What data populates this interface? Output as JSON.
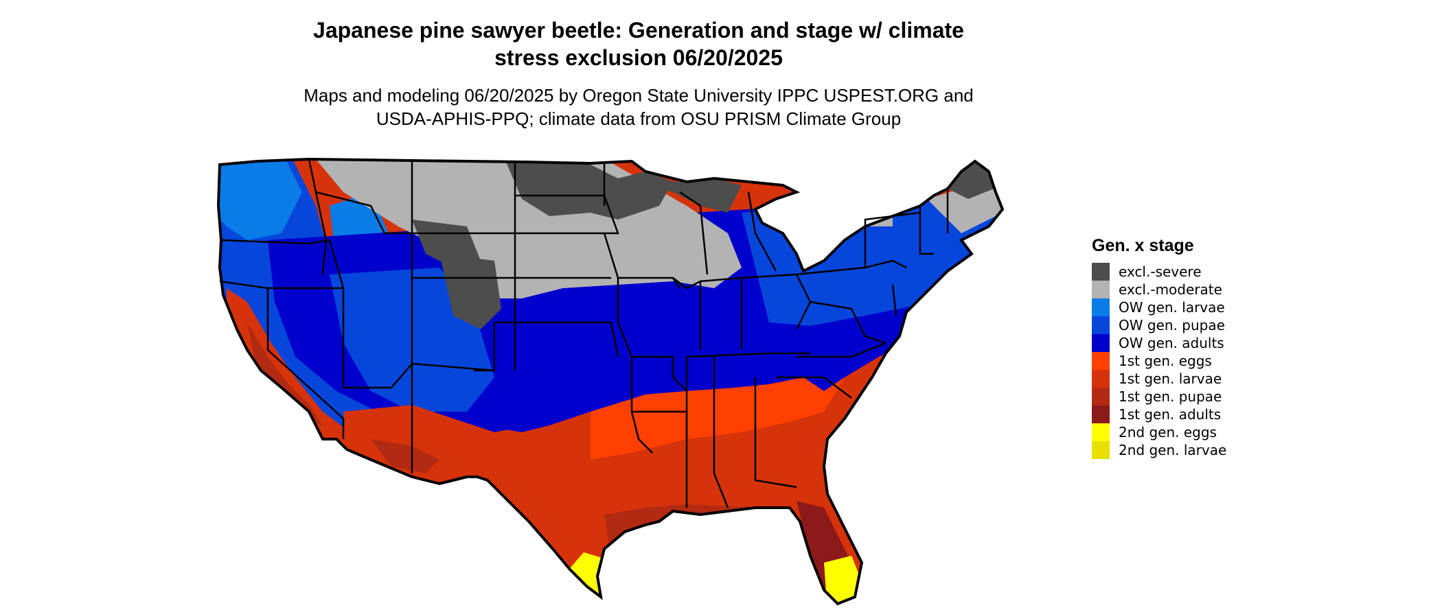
{
  "title_line1": "Japanese pine sawyer beetle: Generation and stage w/ climate",
  "title_line2": "stress exclusion 06/20/2025",
  "subtitle_line1": "Maps and modeling 06/20/2025 by Oregon State University IPPC USPEST.ORG and",
  "subtitle_line2": "USDA-APHIS-PPQ; climate data from OSU PRISM Climate Group",
  "legend": {
    "title": "Gen. x stage",
    "items": [
      {
        "label": "excl.-severe",
        "color": "#4d4d4d"
      },
      {
        "label": "excl.-moderate",
        "color": "#b3b3b3"
      },
      {
        "label": "OW gen. larvae",
        "color": "#0a7ce8"
      },
      {
        "label": "OW gen. pupae",
        "color": "#0746db"
      },
      {
        "label": "OW gen. adults",
        "color": "#0000cc"
      },
      {
        "label": "1st gen. eggs",
        "color": "#ff4000"
      },
      {
        "label": "1st gen. larvae",
        "color": "#d6330a"
      },
      {
        "label": "1st gen. pupae",
        "color": "#b32a12"
      },
      {
        "label": "1st gen. adults",
        "color": "#8c1a1a"
      },
      {
        "label": "2nd gen. eggs",
        "color": "#ffff00"
      },
      {
        "label": "2nd gen. larvae",
        "color": "#e8e000"
      }
    ]
  }
}
